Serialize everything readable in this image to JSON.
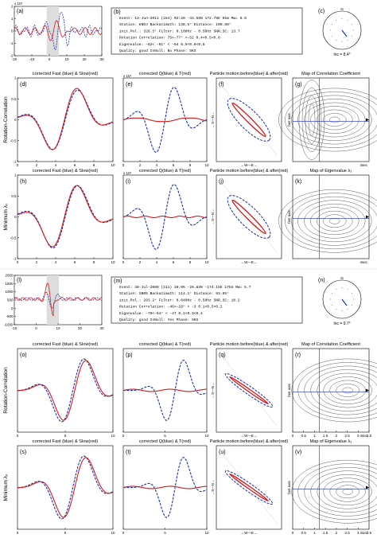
{
  "top": {
    "trace": {
      "label": "(a)",
      "yexp": "x 10⁴",
      "yticks": [
        "2",
        "1",
        "0",
        "-1",
        "-2"
      ],
      "xticks": [
        "-20",
        "-10",
        "0",
        "10",
        "20",
        "30"
      ]
    },
    "info": {
      "label": "(b)",
      "lines": [
        "Event:    13-Jun-2011 (164) 02:20  -43.56N 172.78E  9km        Mw= 6.0",
        "Station:   KNOJ   Backazimuth:    138.5°     Distance:   100.88°",
        "init.Pol.:    326.3°   Filter:  0.100Hz - 0.50Hz     SNR_SC: 13.7",
        "Rotation Correlation:   75<–77°  <–52      0.4<0.5<0.8",
        "Eigenvalue:   –82<  –61° <  –54      0.5<0.6<0.8",
        "Quality:      good       IsNull:    No       Phase:    SKS"
      ]
    },
    "stereo": {
      "label": "(c)",
      "inc": "Inc = 8.4°",
      "n": "N"
    },
    "rows": [
      {
        "ylabel": "Rotation-Correlation",
        "titles": [
          "corrected Fast (blue) & Slow(red)",
          "corrected Q(blue) & T(red)",
          "Particle motion before(blue) & after(red)",
          "Map of Correlation Coefficient"
        ],
        "labels": [
          "(d)",
          "(e)",
          "(f)",
          "(g)"
        ],
        "yticks": [
          "1",
          "0.5",
          "0",
          "-0.5",
          "-1"
        ],
        "xticks": [
          "0",
          "2",
          "4",
          "6",
          "8",
          "10"
        ],
        "pm_axis": [
          "←W—E→",
          "←S—N→"
        ],
        "map_axis": [
          "fast axis",
          "4sec"
        ],
        "exp": "x 10⁴"
      },
      {
        "ylabel": "Minimum λ₂",
        "titles": [
          "corrected Fast (blue) & Slow(red)",
          "corrected Q(blue) & T(red)",
          "Particle motion before(blue) & after(red)",
          "Map of Eigenvalue λ₂"
        ],
        "labels": [
          "(h)",
          "(i)",
          "(j)",
          "(k)"
        ],
        "yticks": [
          "1",
          "0.5",
          "0",
          "-0.5",
          "-1"
        ],
        "xticks": [
          "0",
          "2",
          "4",
          "6",
          "8",
          "10"
        ],
        "pm_axis": [
          "←W—E→",
          "←S—N→"
        ],
        "map_axis": [
          "fast axis",
          "4sec"
        ],
        "exp": "x 10⁴"
      }
    ]
  },
  "bottom": {
    "trace": {
      "label": "(l)",
      "yticks": [
        "2000",
        "1500",
        "1000",
        "500",
        "0",
        "-500",
        "-1000"
      ],
      "xticks": [
        "-10",
        "0",
        "10",
        "20",
        "30"
      ]
    },
    "info": {
      "label": "(m)",
      "lines": [
        "Event:   30-Jul-2009 (211) 20:05  -20.83N -174.15E  17km      Mw= 5.7",
        "Station:    SB05   Backazimuth:    114.1°    Distance:   93.05°",
        "init.Pol.:   293.2°    Filter:  0.040Hz - 0.50Hz     SNR_SC:  10.2",
        "Rotation Correlation:  –46<–28°  < –3      0.1<0.5<0.2",
        "Eigenvalue:   –70<–64°  < –47      0.1<0.3<0.4",
        "Quality:     good      IsNull:    Yes      Phase:    SKS"
      ]
    },
    "stereo": {
      "label": "(n)",
      "inc": "Inc = 9.7°",
      "n": "N"
    },
    "rows": [
      {
        "ylabel": "Rotation-Correlation",
        "titles": [
          "corrected Fast (blue) & Slow(red)",
          "corrected Q(blue) & T(red)",
          "Particle motion before(blue) & after(red)",
          "Map of Correlation Coefficient"
        ],
        "labels": [
          "(o)",
          "(p)",
          "(q)",
          "(r)"
        ],
        "xticks": [
          "0",
          "5",
          "10"
        ],
        "pm_axis": [
          "←W—E→",
          "←S—N→"
        ],
        "map_axis": [
          "fast axis",
          "4sec"
        ],
        "map_xticks": [
          "0",
          "0.5",
          "1",
          "1.5",
          "2",
          "2.5",
          "3",
          "3.5"
        ]
      },
      {
        "ylabel": "Minimum λ₂",
        "titles": [
          "corrected Fast (blue) & Slow(red)",
          "corrected Q(blue) & T(red)",
          "Particle motion before(blue) & after(red)",
          "Map of Eigenvalue λ₂"
        ],
        "labels": [
          "(s)",
          "(t)",
          "(u)",
          "(v)"
        ],
        "xticks": [
          "0",
          "5",
          "10"
        ],
        "pm_axis": [
          "←W—E→",
          "←S—N→"
        ],
        "map_axis": [
          "fast axis",
          "4sec"
        ],
        "map_xticks": [
          "0",
          "0.5",
          "1",
          "1.5",
          "2",
          "2.5",
          "3",
          "3.5"
        ]
      }
    ]
  },
  "colors": {
    "fast": "#1a2fb8",
    "slow": "#d81a1a",
    "axis": "#000000",
    "map": "#333333"
  }
}
